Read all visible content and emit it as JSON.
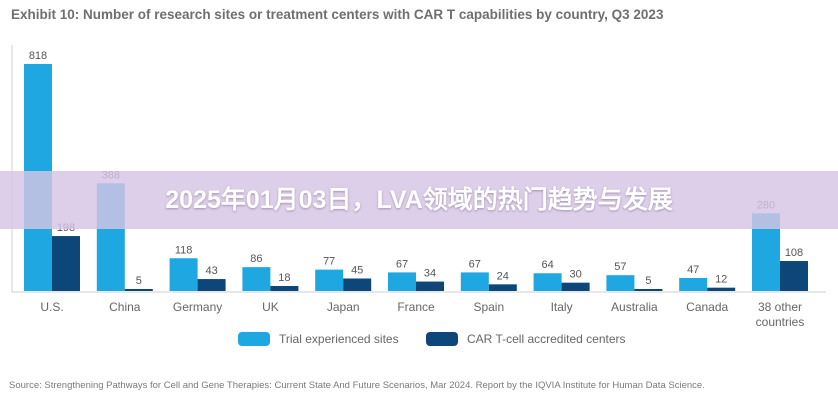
{
  "title": "Exhibit 10: Number of research sites or treatment centers with CAR T capabilities by country, Q3 2023",
  "banner": "2025年01月03日，LVA领域的热门趋势与发展",
  "source": "Source: Strengthening Pathways for Cell and Gene Therapies: Current State And Future Scenarios, Mar 2024. Report by the IQVIA Institute for Human Data Science.",
  "colors": {
    "trial": "#1ea7e1",
    "car": "#0d4679"
  },
  "chart_data": {
    "type": "bar",
    "categories": [
      "U.S.",
      "China",
      "Germany",
      "UK",
      "Japan",
      "France",
      "Spain",
      "Italy",
      "Australia",
      "Canada",
      "38 other countries"
    ],
    "series": [
      {
        "name": "Trial experienced sites",
        "values": [
          818,
          388,
          118,
          86,
          77,
          67,
          67,
          64,
          57,
          47,
          280
        ]
      },
      {
        "name": "CAR T-cell accredited centers",
        "values": [
          198,
          5,
          43,
          18,
          45,
          34,
          24,
          30,
          5,
          12,
          108
        ]
      }
    ],
    "title": "Exhibit 10: Number of research sites or treatment centers with CAR T capabilities by country, Q3 2023",
    "xlabel": "",
    "ylabel": "",
    "ylim": [
      0,
      818
    ],
    "legend": "bottom",
    "grid": false
  }
}
